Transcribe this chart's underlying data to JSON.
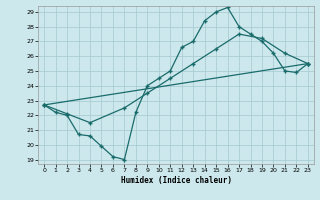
{
  "title": "",
  "xlabel": "Humidex (Indice chaleur)",
  "bg_color": "#cce8ec",
  "grid_color": "#aacdd4",
  "line_color": "#1a6b6b",
  "xmin": -0.5,
  "xmax": 23.5,
  "ymin": 18.7,
  "ymax": 29.4,
  "yticks": [
    19,
    20,
    21,
    22,
    23,
    24,
    25,
    26,
    27,
    28,
    29
  ],
  "xticks": [
    0,
    1,
    2,
    3,
    4,
    5,
    6,
    7,
    8,
    9,
    10,
    11,
    12,
    13,
    14,
    15,
    16,
    17,
    18,
    19,
    20,
    21,
    22,
    23
  ],
  "line1_x": [
    0,
    1,
    2,
    3,
    4,
    5,
    6,
    7,
    8,
    9,
    10,
    11,
    12,
    13,
    14,
    15,
    16,
    17,
    18,
    19,
    20,
    21,
    22,
    23
  ],
  "line1_y": [
    22.7,
    22.2,
    22.0,
    20.7,
    20.6,
    19.9,
    19.2,
    19.0,
    22.2,
    24.0,
    24.5,
    25.0,
    26.6,
    27.0,
    28.4,
    29.0,
    29.3,
    28.0,
    27.5,
    27.0,
    26.2,
    25.0,
    24.9,
    25.5
  ],
  "line2_x": [
    0,
    2,
    4,
    7,
    9,
    11,
    13,
    15,
    17,
    19,
    21,
    23
  ],
  "line2_y": [
    22.7,
    22.1,
    21.5,
    22.5,
    23.5,
    24.5,
    25.5,
    26.5,
    27.5,
    27.2,
    26.2,
    25.5
  ],
  "line3_x": [
    0,
    23
  ],
  "line3_y": [
    22.7,
    25.5
  ]
}
